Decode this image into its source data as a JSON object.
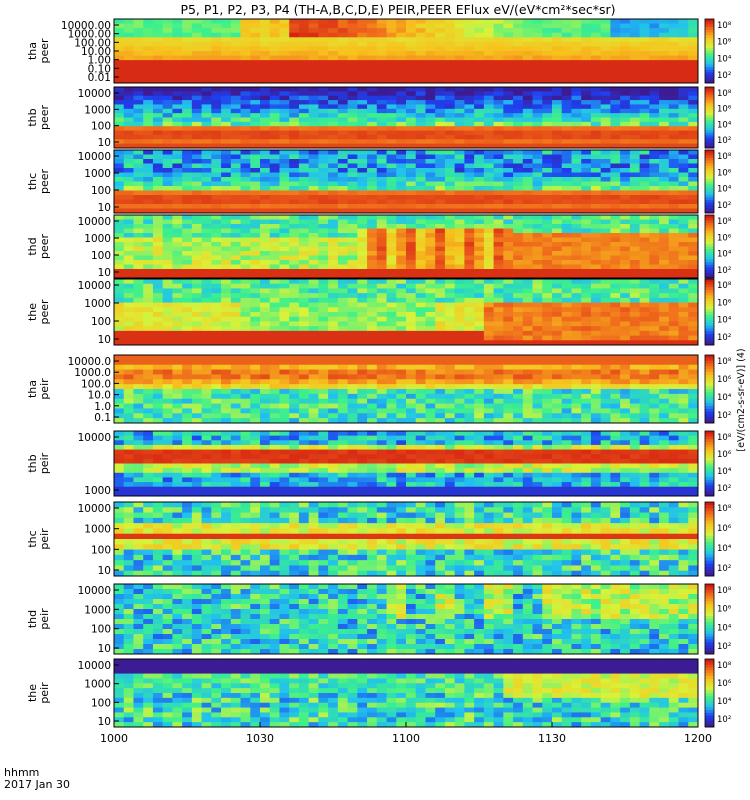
{
  "chart_data": {
    "type": "heatmap",
    "title": "P5, P1, P2, P3, P4 (TH-A,B,C,D,E) PEIR,PEER EFlux eV/(eV*cm²*sec*sr)",
    "date_label": "2017 Jan 30",
    "time_unit_label": "hhmm",
    "x_ticks": [
      "1000",
      "1030",
      "1100",
      "1130",
      "1200"
    ],
    "x_range_minutes": [
      0,
      120
    ],
    "colorbar": {
      "scale": "log",
      "tick_labels": [
        "10²",
        "10⁴",
        "10⁶",
        "10⁸"
      ],
      "unit_label": "[eV/(cm2-s-sr-eV)] (4)",
      "colors": [
        "#3c1c94",
        "#1f3ff0",
        "#21c1ee",
        "#3cf08c",
        "#d8f23a",
        "#f7c21d",
        "#f06d1c",
        "#d21a12"
      ]
    },
    "panels": [
      {
        "probe": "tha",
        "species": "peer",
        "label": "tha\npeer",
        "ylabels": [
          "10000.00",
          "1000.00",
          "100.00",
          "10.00",
          "1.00",
          "0.10",
          "0.01"
        ],
        "variant": "e_tha"
      },
      {
        "probe": "thb",
        "species": "peer",
        "label": "thb\npeer",
        "ylabels": [
          "10000",
          "1000",
          "100",
          "10"
        ],
        "variant": "e_thb"
      },
      {
        "probe": "thc",
        "species": "peer",
        "label": "thc\npeer",
        "ylabels": [
          "10000",
          "1000",
          "100",
          "10"
        ],
        "variant": "e_thc"
      },
      {
        "probe": "thd",
        "species": "peer",
        "label": "thd\npeer",
        "ylabels": [
          "10000",
          "1000",
          "100",
          "10"
        ],
        "variant": "e_thd"
      },
      {
        "probe": "the",
        "species": "peer",
        "label": "the\npeer",
        "ylabels": [
          "10000",
          "1000",
          "100",
          "10"
        ],
        "variant": "e_the"
      },
      {
        "probe": "tha",
        "species": "peir",
        "label": "tha\npeir",
        "ylabels": [
          "10000.0",
          "1000.0",
          "100.0",
          "10.0",
          "1.0",
          "0.1"
        ],
        "variant": "i_tha"
      },
      {
        "probe": "thb",
        "species": "peir",
        "label": "thb\npeir",
        "ylabels": [
          "10000",
          "1000"
        ],
        "variant": "i_thb"
      },
      {
        "probe": "thc",
        "species": "peir",
        "label": "thc\npeir",
        "ylabels": [
          "10000",
          "1000",
          "100",
          "10"
        ],
        "variant": "i_thc"
      },
      {
        "probe": "thd",
        "species": "peir",
        "label": "thd\npeir",
        "ylabels": [
          "10000",
          "1000",
          "100",
          "10"
        ],
        "variant": "i_thd"
      },
      {
        "probe": "the",
        "species": "peir",
        "label": "the\npeir",
        "ylabels": [
          "10000",
          "1000",
          "100",
          "10"
        ],
        "variant": "i_the"
      }
    ]
  }
}
